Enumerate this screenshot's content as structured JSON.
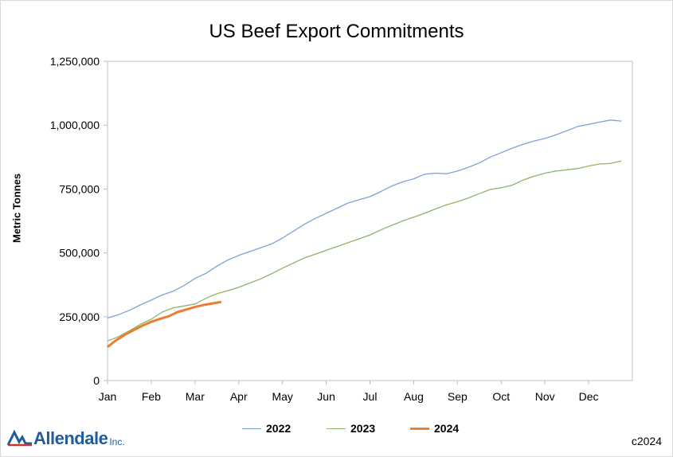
{
  "title": "US Beef Export Commitments",
  "copyright": "c2024",
  "logo": {
    "name": "Allendale",
    "suffix": "Inc."
  },
  "chart_data": {
    "type": "line",
    "title": "US Beef Export Commitments",
    "xlabel": "",
    "ylabel": "Metric Tonnes",
    "x_categories": [
      "Jan",
      "Feb",
      "Mar",
      "Apr",
      "May",
      "Jun",
      "Jul",
      "Aug",
      "Sep",
      "Oct",
      "Nov",
      "Dec"
    ],
    "ylim": [
      0,
      1250000
    ],
    "yticks": [
      0,
      250000,
      500000,
      750000,
      1000000,
      1250000
    ],
    "ytick_labels": [
      "0",
      "250,000",
      "500,000",
      "750,000",
      "1,000,000",
      "1,250,000"
    ],
    "grid": false,
    "legend_position": "bottom",
    "series": [
      {
        "name": "2022",
        "color": "#7ca3d8",
        "x_month": [
          0,
          0.25,
          0.5,
          0.75,
          1,
          1.25,
          1.5,
          1.75,
          2,
          2.25,
          2.5,
          2.75,
          3,
          3.25,
          3.5,
          3.75,
          4,
          4.25,
          4.5,
          4.75,
          5,
          5.25,
          5.5,
          5.75,
          6,
          6.25,
          6.5,
          6.75,
          7,
          7.25,
          7.5,
          7.75,
          8,
          8.25,
          8.5,
          8.75,
          9,
          9.25,
          9.5,
          9.75,
          10,
          10.25,
          10.5,
          10.75,
          11,
          11.25,
          11.5,
          11.75
        ],
        "values": [
          245000,
          258000,
          275000,
          296000,
          315000,
          335000,
          350000,
          372000,
          400000,
          420000,
          448000,
          472000,
          490000,
          505000,
          520000,
          535000,
          558000,
          585000,
          612000,
          635000,
          655000,
          675000,
          695000,
          708000,
          720000,
          740000,
          762000,
          778000,
          790000,
          808000,
          812000,
          810000,
          820000,
          835000,
          852000,
          875000,
          892000,
          910000,
          925000,
          938000,
          948000,
          962000,
          978000,
          995000,
          1003000,
          1012000,
          1020000,
          1016000
        ]
      },
      {
        "name": "2023",
        "color": "#8db46a",
        "x_month": [
          0,
          0.25,
          0.5,
          0.75,
          1,
          1.25,
          1.5,
          1.75,
          2,
          2.25,
          2.5,
          2.75,
          3,
          3.25,
          3.5,
          3.75,
          4,
          4.25,
          4.5,
          4.75,
          5,
          5.25,
          5.5,
          5.75,
          6,
          6.25,
          6.5,
          6.75,
          7,
          7.25,
          7.5,
          7.75,
          8,
          8.25,
          8.5,
          8.75,
          9,
          9.25,
          9.5,
          9.75,
          10,
          10.25,
          10.5,
          10.75,
          11,
          11.25,
          11.5,
          11.75
        ],
        "values": [
          155000,
          172000,
          195000,
          220000,
          240000,
          268000,
          285000,
          292000,
          300000,
          322000,
          340000,
          352000,
          365000,
          382000,
          398000,
          418000,
          440000,
          460000,
          480000,
          495000,
          510000,
          525000,
          540000,
          555000,
          570000,
          590000,
          608000,
          625000,
          640000,
          655000,
          672000,
          688000,
          700000,
          715000,
          732000,
          748000,
          755000,
          765000,
          785000,
          800000,
          812000,
          820000,
          825000,
          830000,
          840000,
          848000,
          850000,
          860000
        ]
      },
      {
        "name": "2024",
        "color": "#ed7d31",
        "x_month": [
          0,
          0.2,
          0.4,
          0.6,
          0.8,
          1,
          1.2,
          1.4,
          1.6,
          1.8,
          2,
          2.2,
          2.4,
          2.6
        ],
        "values": [
          132000,
          158000,
          180000,
          198000,
          215000,
          230000,
          242000,
          252000,
          268000,
          278000,
          288000,
          296000,
          302000,
          308000
        ]
      }
    ]
  }
}
